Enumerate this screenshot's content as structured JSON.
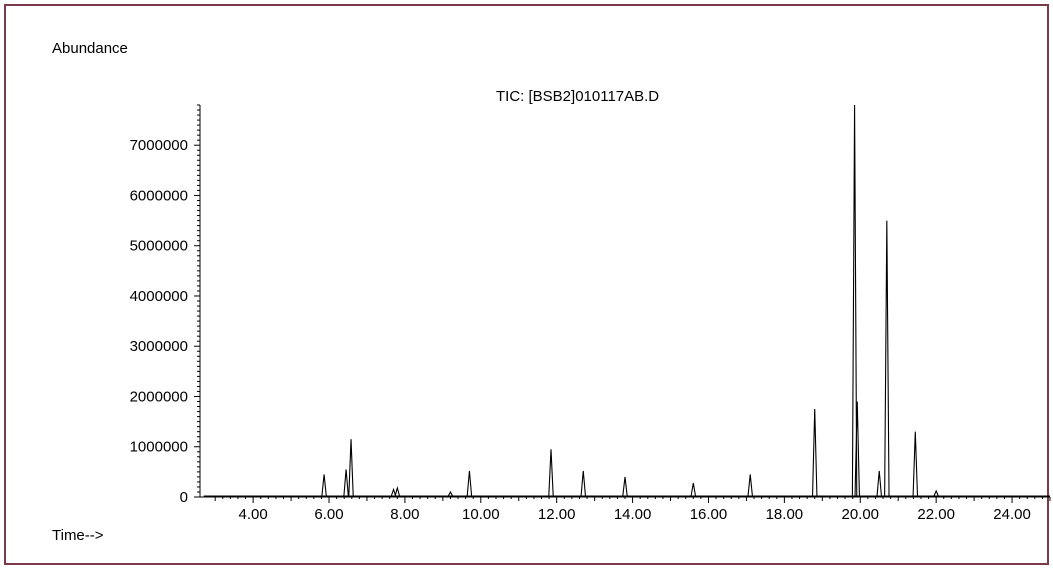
{
  "chart_data": {
    "type": "line",
    "title": "TIC: [BSB2]010117AB.D",
    "ylabel": "Abundance",
    "xlabel": "Time-->",
    "xlim": [
      2.6,
      25.0
    ],
    "ylim": [
      0,
      7800000
    ],
    "x_ticks": [
      4,
      6,
      8,
      10,
      12,
      14,
      16,
      18,
      20,
      22,
      24
    ],
    "x_tick_labels": [
      "4.00",
      "6.00",
      "8.00",
      "10.00",
      "12.00",
      "14.00",
      "16.00",
      "18.00",
      "20.00",
      "22.00",
      "24.00"
    ],
    "y_ticks": [
      0,
      1000000,
      2000000,
      3000000,
      4000000,
      5000000,
      6000000,
      7000000
    ],
    "y_tick_labels": [
      "0",
      "1000000",
      "2000000",
      "3000000",
      "4000000",
      "5000000",
      "6000000",
      "7000000"
    ],
    "grid": false,
    "colors": {
      "frame": "#7b3a4a",
      "trace": "#000000"
    },
    "series": [
      {
        "peaks": [
          {
            "rt": 5.87,
            "height": 450000
          },
          {
            "rt": 6.45,
            "height": 550000
          },
          {
            "rt": 6.58,
            "height": 1150000
          },
          {
            "rt": 7.7,
            "height": 150000
          },
          {
            "rt": 7.8,
            "height": 180000
          },
          {
            "rt": 9.2,
            "height": 100000
          },
          {
            "rt": 9.7,
            "height": 520000
          },
          {
            "rt": 11.85,
            "height": 950000
          },
          {
            "rt": 12.7,
            "height": 520000
          },
          {
            "rt": 13.8,
            "height": 400000
          },
          {
            "rt": 15.6,
            "height": 280000
          },
          {
            "rt": 17.1,
            "height": 450000
          },
          {
            "rt": 18.8,
            "height": 1750000
          },
          {
            "rt": 19.85,
            "height": 7800000
          },
          {
            "rt": 19.92,
            "height": 1900000
          },
          {
            "rt": 20.5,
            "height": 520000
          },
          {
            "rt": 20.7,
            "height": 5500000
          },
          {
            "rt": 21.45,
            "height": 1300000
          },
          {
            "rt": 22.0,
            "height": 120000
          }
        ]
      }
    ]
  }
}
